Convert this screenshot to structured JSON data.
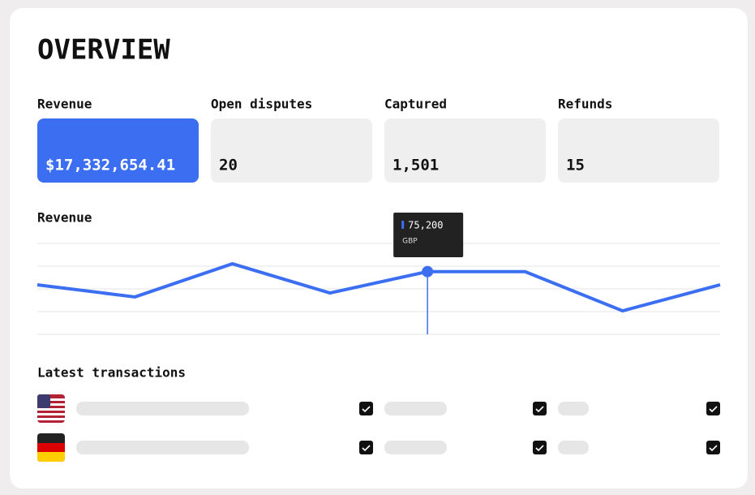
{
  "header": {
    "title": "OVERVIEW"
  },
  "stats": [
    {
      "label": "Revenue",
      "value": "$17,332,654.41"
    },
    {
      "label": "Open disputes",
      "value": "20"
    },
    {
      "label": "Captured",
      "value": "1,501"
    },
    {
      "label": "Refunds",
      "value": "15"
    }
  ],
  "revenue_chart": {
    "type": "line",
    "title": "Revenue",
    "values": [
      63600,
      52900,
      82100,
      56400,
      75200,
      75200,
      40700,
      63600
    ],
    "ylim": [
      20000,
      100000
    ],
    "color": "#3b6ef0",
    "tooltip": {
      "index": 4,
      "value_label": "75,200",
      "unit": "GBP"
    }
  },
  "transactions": {
    "title": "Latest transactions"
  }
}
